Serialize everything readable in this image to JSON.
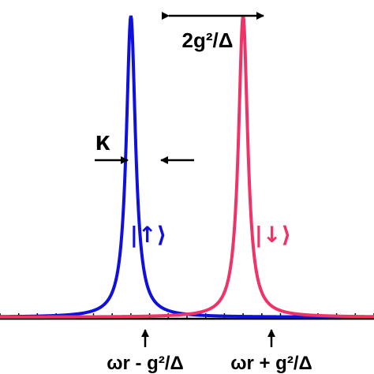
{
  "chart_data": {
    "type": "line",
    "title": "",
    "xlabel": "",
    "ylabel": "",
    "x_center": 0,
    "x_range": [
      -1.0,
      1.0
    ],
    "half_width": 0.03,
    "y_range": [
      0,
      1.0
    ],
    "series": [
      {
        "name": "|↑⟩",
        "center": -0.3,
        "peak": 1.0,
        "color": "#1010dd"
      },
      {
        "name": "|↓⟩",
        "center": 0.3,
        "peak": 1.0,
        "color": "#ee3366"
      }
    ],
    "annotations": {
      "splitting": "2g²/Δ",
      "linewidth": "κ",
      "tick_left": "ωr - g²/Δ",
      "tick_right": "ωr + g²/Δ"
    },
    "colors": {
      "axis": "#000000",
      "annotation": "#000000"
    }
  }
}
